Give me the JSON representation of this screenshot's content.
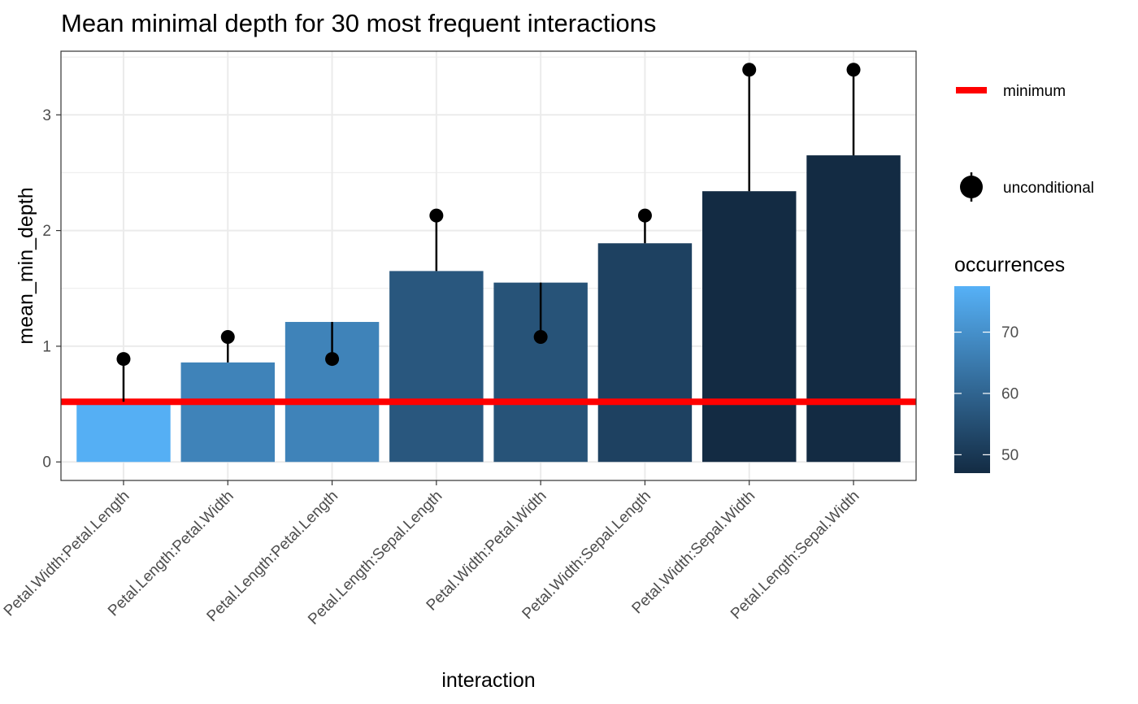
{
  "chart_data": {
    "type": "bar",
    "title": "Mean minimal depth for 30 most frequent interactions",
    "xlabel": "interaction",
    "ylabel": "mean_min_depth",
    "ylim": [
      -0.16,
      3.55
    ],
    "yticks": [
      0,
      1,
      2,
      3
    ],
    "grid": true,
    "categories": [
      "Petal.Width:Petal.Length",
      "Petal.Length:Petal.Width",
      "Petal.Length:Petal.Length",
      "Petal.Length:Sepal.Length",
      "Petal.Width:Petal.Width",
      "Petal.Width:Sepal.Length",
      "Petal.Width:Sepal.Width",
      "Petal.Length:Sepal.Width"
    ],
    "series": [
      {
        "name": "mean_min_depth",
        "values": [
          0.52,
          0.86,
          1.21,
          1.65,
          1.55,
          1.89,
          2.34,
          2.65
        ]
      },
      {
        "name": "unconditional",
        "values": [
          0.89,
          1.08,
          0.89,
          2.13,
          1.08,
          2.13,
          3.39,
          3.39
        ]
      },
      {
        "name": "occurrences",
        "values": [
          77,
          67,
          67,
          57,
          56,
          52,
          47,
          47
        ]
      }
    ],
    "minimum": {
      "label": "minimum",
      "value": 0.52,
      "color": "#ff0000"
    },
    "legend": {
      "placement": "right",
      "minimum_label": "minimum",
      "unconditional_label": "unconditional",
      "colorbar_title": "occurrences",
      "colorbar_ticks": [
        70,
        60,
        50
      ],
      "colorbar_range": [
        47,
        77.5
      ],
      "color_low": "#132b43",
      "color_high": "#56b1f7"
    }
  }
}
